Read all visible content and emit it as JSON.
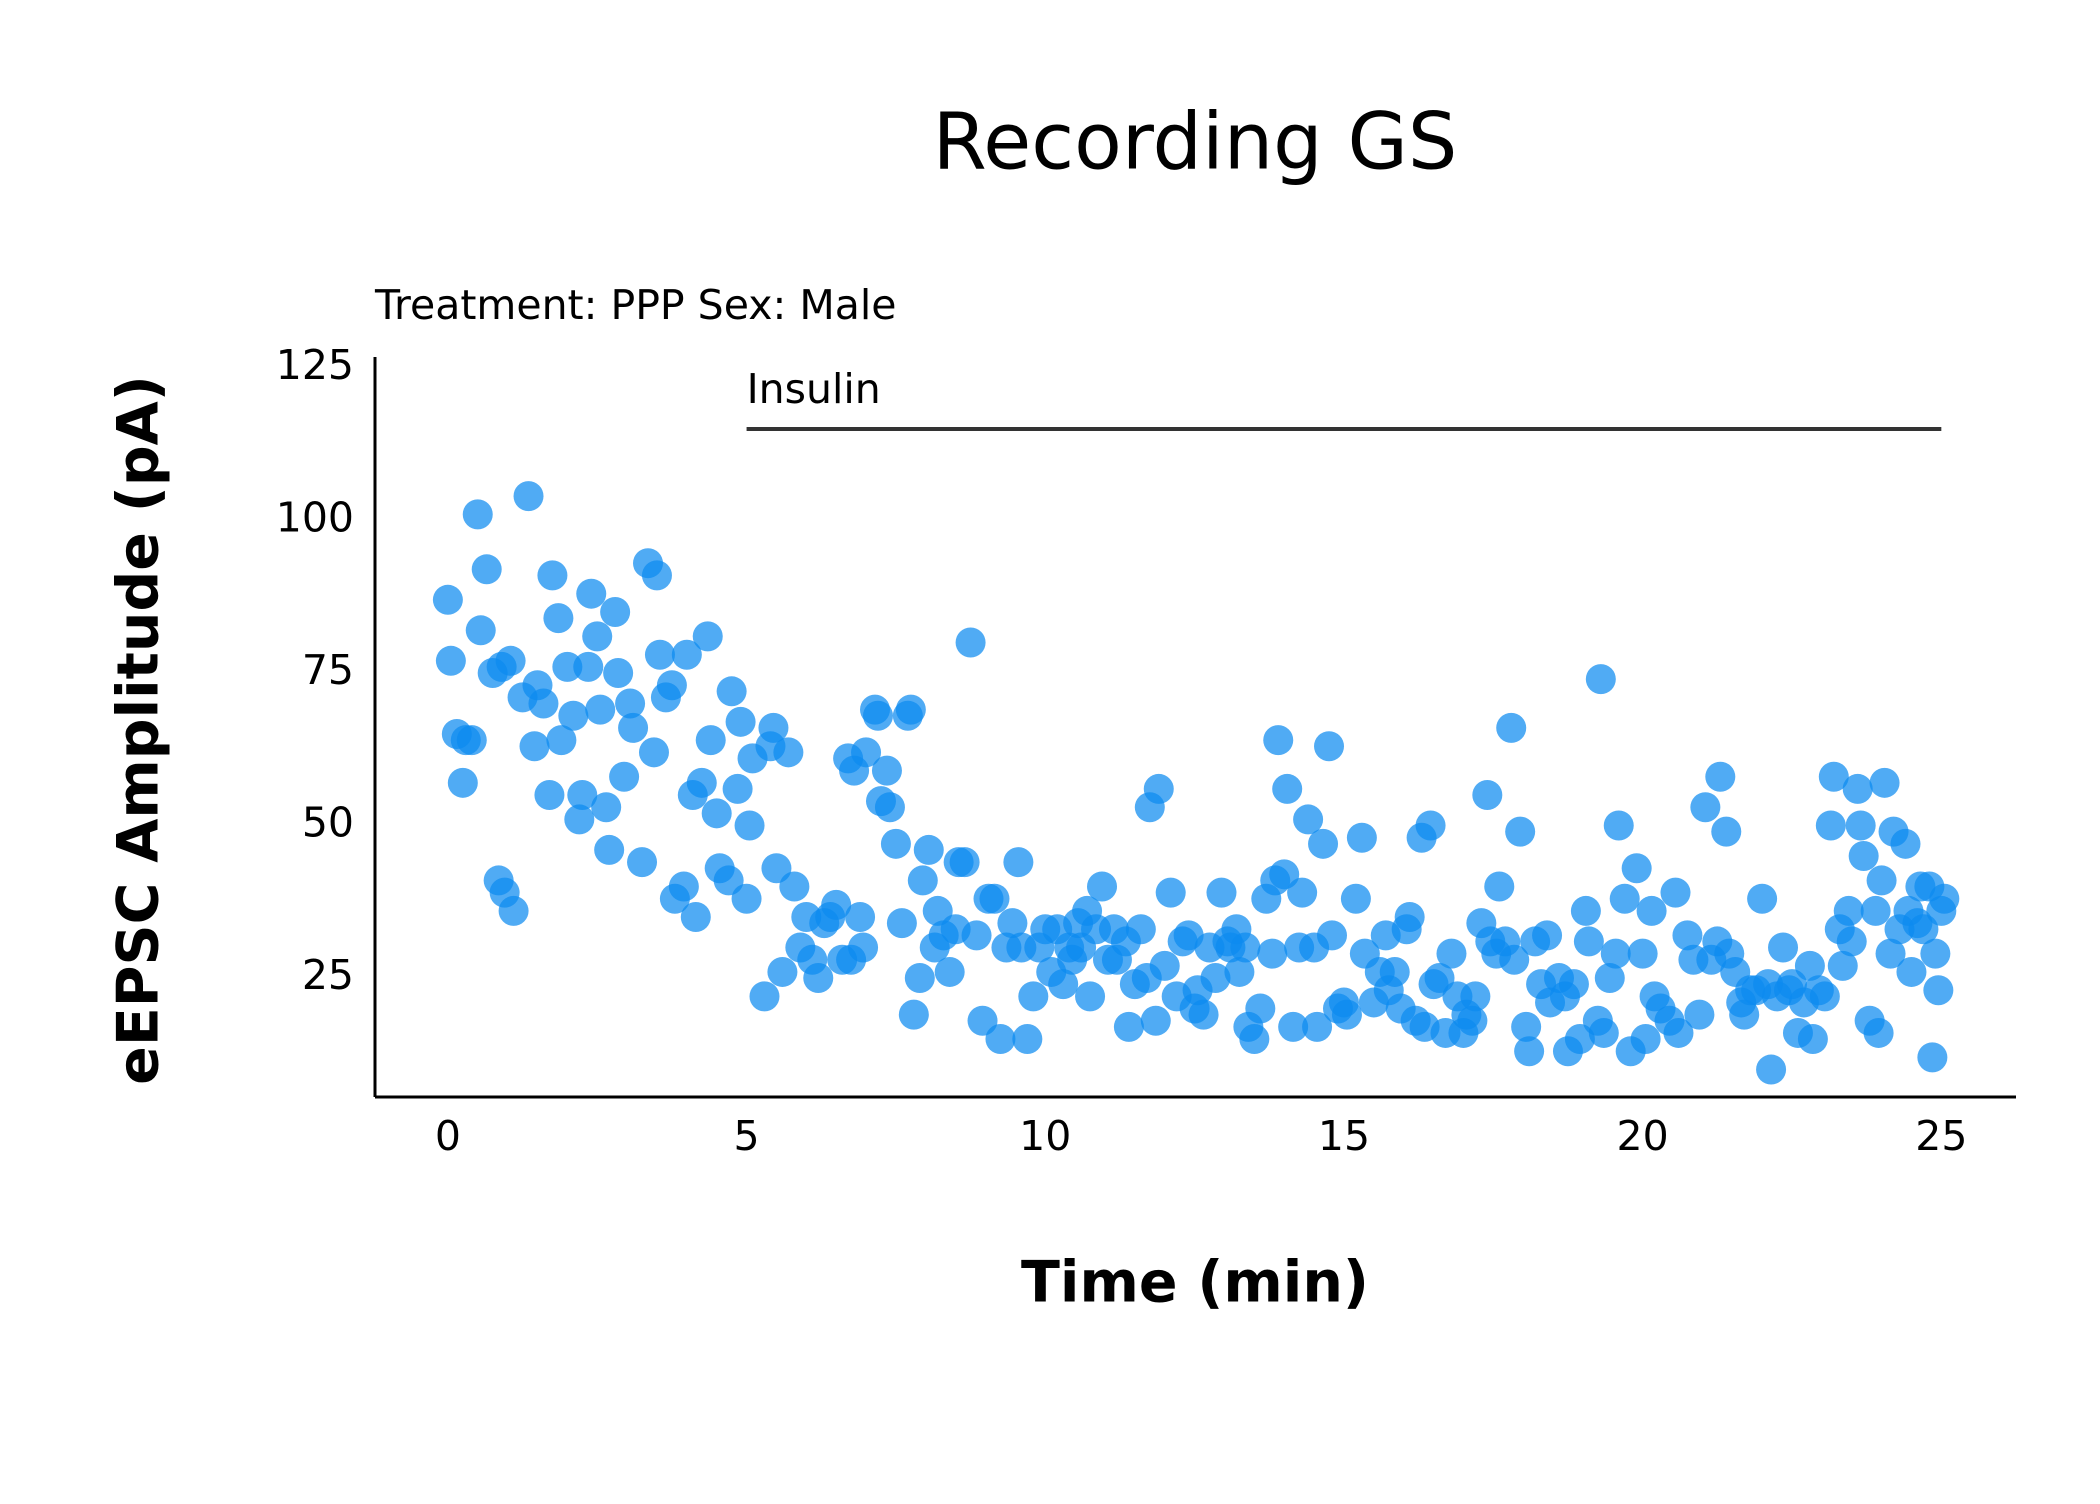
{
  "chart_data": {
    "type": "scatter",
    "title": "Recording GS",
    "subtitle": "Treatment: PPP  Sex: Male",
    "x_label": "Time (min)",
    "y_label": "eEPSC Amplitude (pA)",
    "color": "#0d8af0",
    "xlim": [
      -1.22,
      26.25
    ],
    "ylim": [
      5.5,
      126.8
    ],
    "xticks": [
      0,
      5,
      10,
      15,
      20,
      25
    ],
    "yticks": [
      25,
      50,
      75,
      100,
      125
    ],
    "annotations": [
      {
        "text": "Insulin",
        "x": [
          5,
          25
        ],
        "y": 115
      }
    ],
    "x": [
      0.0,
      0.05,
      0.15,
      0.25,
      0.3,
      0.4,
      0.5,
      0.55,
      0.65,
      0.75,
      0.85,
      0.9,
      0.95,
      1.05,
      1.1,
      1.25,
      1.35,
      1.45,
      1.5,
      1.6,
      1.7,
      1.75,
      1.85,
      1.9,
      2.0,
      2.1,
      2.2,
      2.25,
      2.35,
      2.4,
      2.5,
      2.55,
      2.65,
      2.7,
      2.8,
      2.85,
      2.95,
      3.05,
      3.1,
      3.25,
      3.35,
      3.45,
      3.5,
      3.55,
      3.65,
      3.75,
      3.8,
      3.95,
      4.0,
      4.1,
      4.15,
      4.25,
      4.35,
      4.4,
      4.5,
      4.55,
      4.7,
      4.75,
      4.85,
      4.9,
      5.0,
      5.05,
      5.1,
      5.3,
      5.4,
      5.45,
      5.5,
      5.6,
      5.7,
      5.8,
      5.9,
      6.0,
      6.1,
      6.2,
      6.3,
      6.4,
      6.5,
      6.6,
      6.7,
      6.75,
      6.8,
      6.9,
      6.95,
      7.0,
      7.15,
      7.2,
      7.25,
      7.35,
      7.4,
      7.5,
      7.6,
      7.7,
      7.75,
      7.8,
      7.9,
      7.95,
      8.05,
      8.15,
      8.2,
      8.3,
      8.4,
      8.5,
      8.55,
      8.65,
      8.75,
      8.85,
      8.95,
      9.05,
      9.15,
      9.25,
      9.35,
      9.45,
      9.55,
      9.6,
      9.7,
      9.8,
      9.9,
      10.0,
      10.1,
      10.2,
      10.3,
      10.4,
      10.45,
      10.55,
      10.6,
      10.7,
      10.75,
      10.85,
      10.95,
      11.05,
      11.15,
      11.2,
      11.35,
      11.4,
      11.5,
      11.6,
      11.7,
      11.75,
      11.85,
      11.9,
      12.0,
      12.1,
      12.2,
      12.3,
      12.4,
      12.5,
      12.55,
      12.65,
      12.75,
      12.85,
      12.95,
      13.05,
      13.1,
      13.2,
      13.25,
      13.35,
      13.4,
      13.5,
      13.6,
      13.7,
      13.8,
      13.85,
      13.9,
      14.0,
      14.05,
      14.15,
      14.25,
      14.3,
      14.4,
      14.5,
      14.55,
      14.65,
      14.75,
      14.8,
      14.9,
      15.0,
      15.05,
      15.2,
      15.3,
      15.35,
      15.5,
      15.6,
      15.7,
      15.75,
      15.85,
      15.95,
      16.05,
      16.1,
      16.2,
      16.3,
      16.35,
      16.45,
      16.5,
      16.6,
      16.7,
      16.8,
      16.9,
      17.0,
      17.05,
      17.15,
      17.2,
      17.3,
      17.4,
      17.45,
      17.55,
      17.6,
      17.7,
      17.8,
      17.85,
      17.95,
      18.05,
      18.1,
      18.2,
      18.3,
      18.4,
      18.45,
      18.6,
      18.7,
      18.75,
      18.85,
      18.95,
      19.05,
      19.1,
      19.25,
      19.3,
      19.35,
      19.45,
      19.55,
      19.6,
      19.7,
      19.8,
      19.9,
      20.0,
      20.05,
      20.15,
      20.2,
      20.3,
      20.45,
      20.55,
      20.6,
      20.75,
      20.85,
      20.95,
      21.05,
      21.15,
      21.25,
      21.3,
      21.4,
      21.45,
      21.55,
      21.65,
      21.7,
      21.8,
      21.9,
      22.0,
      22.1,
      22.15,
      22.25,
      22.35,
      22.45,
      22.5,
      22.6,
      22.7,
      22.8,
      22.85,
      22.95,
      23.05,
      23.15,
      23.2,
      23.3,
      23.35,
      23.45,
      23.5,
      23.6,
      23.65,
      23.7,
      23.8,
      23.9,
      23.95,
      24.0,
      24.05,
      24.15,
      24.2,
      24.3,
      24.4,
      24.45,
      24.5,
      24.6,
      24.65,
      24.7,
      24.8,
      24.85,
      24.9,
      24.95,
      25.0,
      25.05
    ],
    "values": [
      87,
      77,
      65,
      57,
      64,
      64,
      101,
      82,
      92,
      75,
      41,
      76,
      39,
      77,
      36,
      71,
      104,
      63,
      73,
      70,
      55,
      91,
      84,
      64,
      76,
      68,
      51,
      55,
      76,
      88,
      81,
      69,
      53,
      46,
      85,
      75,
      58,
      70,
      66,
      44,
      93,
      62,
      91,
      78,
      71,
      73,
      38,
      40,
      78,
      55,
      35,
      57,
      81,
      64,
      52,
      43,
      41,
      72,
      56,
      67,
      38,
      50,
      61,
      22,
      63,
      66,
      43,
      26,
      62,
      40,
      30,
      35,
      28,
      25,
      34,
      35,
      37,
      28,
      61,
      28,
      59,
      35,
      30,
      62,
      69,
      68,
      54,
      59,
      53,
      47,
      34,
      68,
      69,
      19,
      25,
      41,
      46,
      30,
      36,
      32,
      26,
      33,
      44,
      44,
      80,
      32,
      18,
      38,
      38,
      15,
      30,
      34,
      44,
      30,
      15,
      22,
      30,
      33,
      26,
      33,
      24,
      30,
      28,
      34,
      30,
      36,
      22,
      33,
      40,
      28,
      33,
      28,
      31,
      17,
      24,
      33,
      25,
      53,
      18,
      56,
      27,
      39,
      22,
      31,
      32,
      20,
      23,
      19,
      30,
      25,
      39,
      31,
      30,
      33,
      26,
      30,
      17,
      15,
      20,
      38,
      29,
      41,
      64,
      42,
      56,
      17,
      30,
      39,
      51,
      30,
      17,
      47,
      63,
      32,
      20,
      21,
      19,
      38,
      48,
      29,
      21,
      26,
      32,
      23,
      26,
      20,
      33,
      35,
      18,
      48,
      17,
      50,
      24,
      25,
      16,
      29,
      22,
      16,
      19,
      18,
      22,
      34,
      55,
      31,
      29,
      40,
      31,
      66,
      28,
      49,
      17,
      13,
      31,
      24,
      32,
      21,
      25,
      22,
      13,
      24,
      15,
      36,
      31,
      18,
      74,
      16,
      25,
      29,
      50,
      38,
      13,
      43,
      29,
      15,
      36,
      22,
      20,
      18,
      39,
      16,
      32,
      28,
      19,
      53,
      28,
      31,
      58,
      49,
      29,
      26,
      21,
      19,
      23,
      23,
      38,
      24,
      10,
      22,
      30,
      23,
      24,
      16,
      21,
      27,
      15,
      23,
      22,
      50,
      58,
      33,
      27,
      36,
      31,
      56,
      50,
      45,
      18,
      36,
      16,
      41,
      57,
      29,
      49,
      33,
      47,
      36,
      26,
      34,
      40,
      33,
      40,
      12,
      29,
      23,
      36,
      38
    ]
  }
}
